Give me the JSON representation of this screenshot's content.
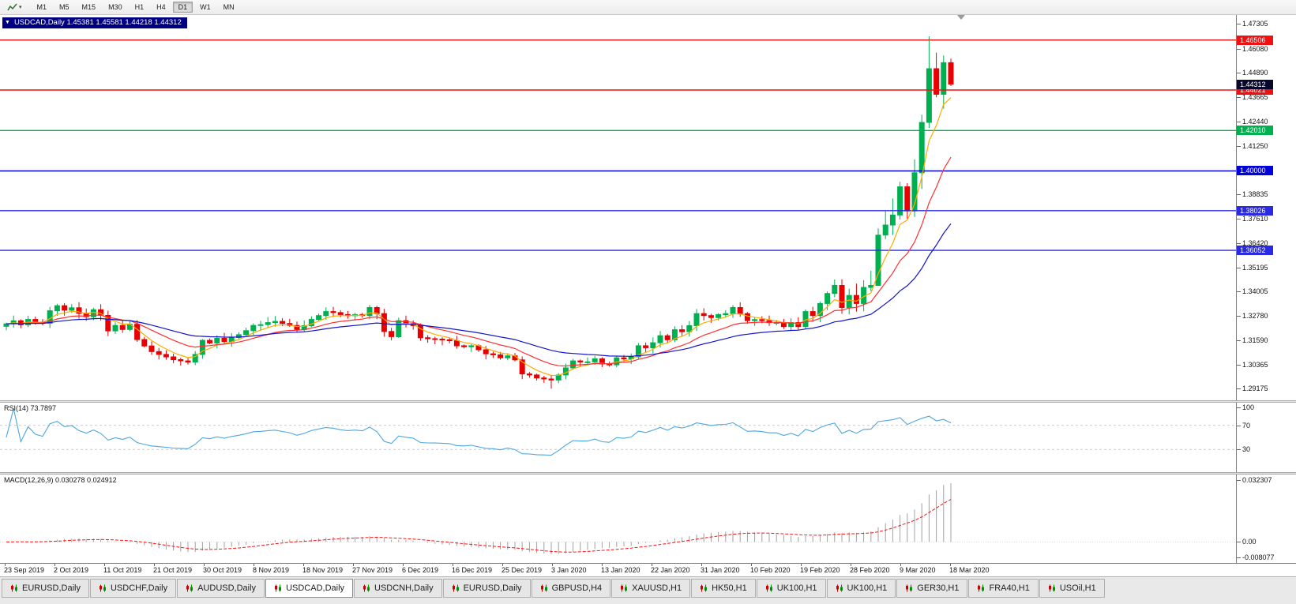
{
  "toolbar": {
    "timeframes": [
      "M1",
      "M5",
      "M15",
      "M30",
      "H1",
      "H4",
      "D1",
      "W1",
      "MN"
    ],
    "active_timeframe": "D1"
  },
  "chart": {
    "info_bar": "USDCAD,Daily 1.45381 1.45581 1.44218 1.44312",
    "symbol": "USDCAD",
    "period": "Daily",
    "current_price": "1.44312",
    "current_price_value": 1.44312,
    "axis_labels": [
      "1.47305",
      "1.46080",
      "1.44890",
      "1.43665",
      "1.42440",
      "1.41250",
      "1.40000",
      "1.38835",
      "1.37610",
      "1.36420",
      "1.35195",
      "1.34005",
      "1.32780",
      "1.31590",
      "1.30365",
      "1.29175"
    ],
    "hlines": [
      {
        "value": 1.46506,
        "label": "1.46506",
        "color": "#ee1111"
      },
      {
        "value": 1.44021,
        "label": "1.44021",
        "color": "#ee1111"
      },
      {
        "value": 1.4201,
        "label": "1.42010",
        "color": "#00b050"
      },
      {
        "value": 1.4,
        "label": "1.40000",
        "color": "#0000d8"
      },
      {
        "value": 1.38026,
        "label": "1.38026",
        "color": "#2a2ae0"
      },
      {
        "value": 1.36052,
        "label": "1.36052",
        "color": "#2a2ae0"
      }
    ],
    "date_labels": [
      "23 Sep 2019",
      "2 Oct 2019",
      "11 Oct 2019",
      "21 Oct 2019",
      "30 Oct 2019",
      "8 Nov 2019",
      "18 Nov 2019",
      "27 Nov 2019",
      "6 Dec 2019",
      "16 Dec 2019",
      "25 Dec 2019",
      "3 Jan 2020",
      "13 Jan 2020",
      "22 Jan 2020",
      "31 Jan 2020",
      "10 Feb 2020",
      "19 Feb 2020",
      "28 Feb 2020",
      "9 Mar 2020",
      "18 Mar 2020"
    ]
  },
  "chart_data": {
    "type": "candlestick",
    "symbol": "USDCAD",
    "timeframe": "Daily",
    "quote": {
      "open": 1.45381,
      "high": 1.45581,
      "low": 1.44218,
      "close": 1.44312
    },
    "price_range": [
      1.286,
      1.4775
    ],
    "up_color": "#00b050",
    "down_color": "#e80000",
    "closes": [
      1.324,
      1.3255,
      1.3235,
      1.3262,
      1.3248,
      1.3243,
      1.3305,
      1.333,
      1.3308,
      1.332,
      1.3292,
      1.3275,
      1.331,
      1.3282,
      1.3205,
      1.3232,
      1.3212,
      1.3238,
      1.3162,
      1.313,
      1.3102,
      1.3088,
      1.3076,
      1.3062,
      1.3056,
      1.305,
      1.3088,
      1.3158,
      1.3145,
      1.3168,
      1.3152,
      1.3172,
      1.3186,
      1.3206,
      1.3232,
      1.3236,
      1.3246,
      1.3252,
      1.3242,
      1.3232,
      1.3212,
      1.3231,
      1.3262,
      1.3281,
      1.3301,
      1.3296,
      1.3286,
      1.328,
      1.3286,
      1.3281,
      1.3321,
      1.3291,
      1.3202,
      1.3176,
      1.3256,
      1.3241,
      1.3231,
      1.3171,
      1.3166,
      1.3164,
      1.3161,
      1.3156,
      1.3131,
      1.3126,
      1.3131,
      1.3111,
      1.3091,
      1.3086,
      1.3071,
      1.3081,
      1.3061,
      1.2991,
      1.2986,
      1.2971,
      1.2966,
      1.2961,
      1.2986,
      1.3021,
      1.3056,
      1.3051,
      1.3051,
      1.3066,
      1.3041,
      1.3036,
      1.3071,
      1.3066,
      1.3076,
      1.3131,
      1.3121,
      1.3146,
      1.3181,
      1.3161,
      1.3211,
      1.3201,
      1.3231,
      1.3291,
      1.3281,
      1.3271,
      1.3286,
      1.3291,
      1.3321,
      1.3291,
      1.3256,
      1.3261,
      1.3256,
      1.3246,
      1.3246,
      1.3226,
      1.3246,
      1.3226,
      1.3301,
      1.3281,
      1.3341,
      1.3391,
      1.3431,
      1.3321,
      1.3381,
      1.3341,
      1.3421,
      1.3431,
      1.3681,
      1.3731,
      1.3781,
      1.3921,
      1.3801,
      1.3991,
      1.4241,
      1.4508,
      1.4381,
      1.4538,
      1.44312
    ],
    "overrides": {
      "75": {
        "low": 1.2918
      },
      "120": {
        "low": 1.343
      },
      "127": {
        "high": 1.4669
      },
      "128": {
        "low": 1.4366
      },
      "130": {
        "open": 1.45381,
        "high": 1.45581,
        "low": 1.44218,
        "close": 1.44312
      }
    },
    "moving_averages": [
      {
        "name": "ma-fast",
        "period": 5,
        "color": "#ffaa00"
      },
      {
        "name": "ma-medium",
        "period": 13,
        "color": "#ff3030"
      },
      {
        "name": "ma-slow",
        "period": 30,
        "color": "#1414cc"
      }
    ],
    "rsi": {
      "label": "RSI(14) 73.7897",
      "period": 14,
      "current": "73.7897",
      "axis_labels": [
        "100",
        "70",
        "30"
      ],
      "levels": [
        70,
        30
      ],
      "line_color": "#4da6e0"
    },
    "macd": {
      "label": "MACD(12,26,9) 0.030278 0.024912",
      "params": [
        12,
        26,
        9
      ],
      "current_macd": "0.030278",
      "current_signal": "0.024912",
      "axis_labels": [
        "0.032307",
        "0.00",
        "-0.008077"
      ],
      "axis_values": [
        0.032307,
        0,
        -0.008077
      ],
      "hist_color": "#a0a0a0",
      "signal_color": "#ff1111"
    }
  },
  "tabs": {
    "active_index": 3,
    "items": [
      "EURUSD,Daily",
      "USDCHF,Daily",
      "AUDUSD,Daily",
      "USDCAD,Daily",
      "USDCNH,Daily",
      "EURUSD,Daily",
      "GBPUSD,H4",
      "XAUUSD,H1",
      "HK50,H1",
      "UK100,H1",
      "UK100,H1",
      "GER30,H1",
      "FRA40,H1",
      "USOil,H1"
    ]
  }
}
